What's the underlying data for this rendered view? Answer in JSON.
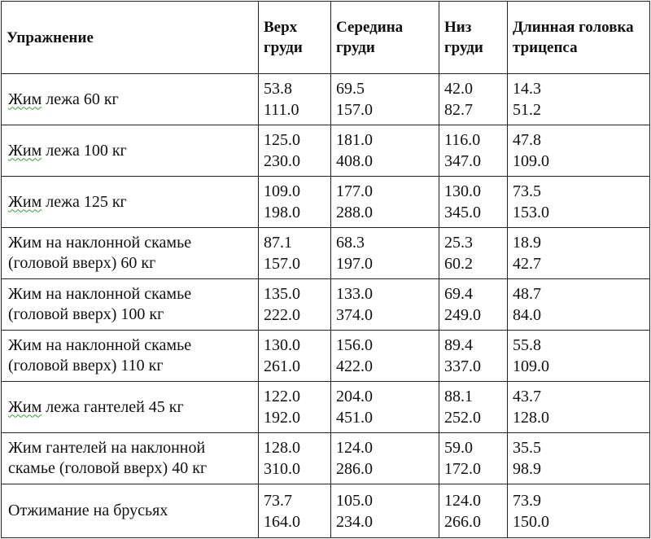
{
  "headers": [
    "Упражнение",
    "Верх груди",
    "Середина груди",
    "Низ груди",
    "Длинная головка трицепса"
  ],
  "rows": [
    {
      "exercise_underlined": "Жим",
      "exercise_rest": " лежа 60 кг",
      "values": [
        [
          "53.8",
          "111.0"
        ],
        [
          "69.5",
          "157.0"
        ],
        [
          "42.0",
          "82.7"
        ],
        [
          "14.3",
          "51.2"
        ]
      ]
    },
    {
      "exercise_underlined": "Жим",
      "exercise_rest": " лежа 100 кг",
      "values": [
        [
          "125.0",
          "230.0"
        ],
        [
          "181.0",
          "408.0"
        ],
        [
          "116.0",
          "347.0"
        ],
        [
          "47.8",
          "109.0"
        ]
      ]
    },
    {
      "exercise_underlined": "Жим",
      "exercise_rest": " лежа 125 кг",
      "values": [
        [
          "109.0",
          "198.0"
        ],
        [
          "177.0",
          "288.0"
        ],
        [
          "130.0",
          "345.0"
        ],
        [
          "73.5",
          "153.0"
        ]
      ]
    },
    {
      "exercise_underlined": "",
      "exercise_rest": "Жим на наклонной скамье (головой вверх) 60 кг",
      "values": [
        [
          "87.1",
          "157.0"
        ],
        [
          "68.3",
          "197.0"
        ],
        [
          "25.3",
          "60.2"
        ],
        [
          "18.9",
          "42.7"
        ]
      ]
    },
    {
      "exercise_underlined": "",
      "exercise_rest": "Жим на наклонной скамье (головой вверх) 100 кг",
      "values": [
        [
          "135.0",
          "222.0"
        ],
        [
          "133.0",
          "374.0"
        ],
        [
          "69.4",
          "249.0"
        ],
        [
          "48.7",
          "84.0"
        ]
      ]
    },
    {
      "exercise_underlined": "",
      "exercise_rest": "Жим на наклонной скамье (головой вверх) 110 кг",
      "values": [
        [
          "130.0",
          "261.0"
        ],
        [
          "156.0",
          "422.0"
        ],
        [
          "89.4",
          "337.0"
        ],
        [
          "55.8",
          "109.0"
        ]
      ]
    },
    {
      "exercise_underlined": "Жим",
      "exercise_rest": " лежа гантелей 45 кг",
      "values": [
        [
          "122.0",
          "192.0"
        ],
        [
          "204.0",
          "451.0"
        ],
        [
          "88.1",
          "252.0"
        ],
        [
          "43.7",
          "128.0"
        ]
      ]
    },
    {
      "exercise_underlined": "",
      "exercise_rest": "Жим гантелей на наклонной скамье (головой вверх) 40 кг",
      "values": [
        [
          "128.0",
          "310.0"
        ],
        [
          "124.0",
          "286.0"
        ],
        [
          "59.0",
          "172.0"
        ],
        [
          "35.5",
          "98.9"
        ]
      ]
    },
    {
      "exercise_underlined": "",
      "exercise_rest": "Отжимание на брусьях",
      "values": [
        [
          "73.7",
          "164.0"
        ],
        [
          "105.0",
          "234.0"
        ],
        [
          "124.0",
          "266.0"
        ],
        [
          "73.9",
          "150.0"
        ]
      ]
    }
  ]
}
